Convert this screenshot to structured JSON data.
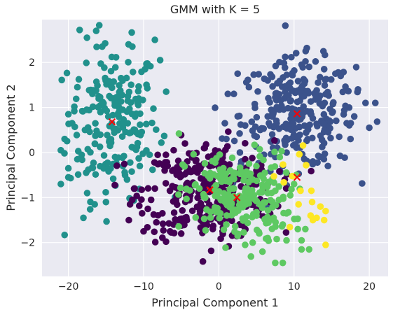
{
  "chart_data": {
    "type": "scatter",
    "title": "GMM with K = 5",
    "xlabel": "Principal Component 1",
    "ylabel": "Principal Component 2",
    "xlim": [
      -23.5,
      22.5
    ],
    "ylim": [
      -2.75,
      2.95
    ],
    "xticks": [
      -20,
      -10,
      0,
      10,
      20
    ],
    "yticks": [
      -2,
      -1,
      0,
      1,
      2
    ],
    "grid": true,
    "background_color": "#eaeaf2",
    "centroid_color": "#ff0000",
    "centroid_marker": "x",
    "clusters": [
      {
        "color": "#21918c",
        "center": [
          -14,
          0.7
        ],
        "spread": [
          3.0,
          0.85
        ],
        "count": 200,
        "points": [
          [
            -18.5,
            2.72
          ],
          [
            -16.3,
            2.7
          ],
          [
            -15.5,
            2.35
          ],
          [
            -12.0,
            2.4
          ],
          [
            -11.5,
            2.35
          ],
          [
            -8.5,
            2.5
          ],
          [
            -7.8,
            2.05
          ],
          [
            -9.8,
            1.85
          ],
          [
            -7.0,
            1.35
          ],
          [
            -18.8,
            1.45
          ],
          [
            -20.0,
            0.85
          ],
          [
            -19.5,
            0.65
          ],
          [
            -20.5,
            0.3
          ],
          [
            -21.0,
            0.05
          ],
          [
            -20.0,
            -0.35
          ],
          [
            -18.8,
            -0.15
          ],
          [
            -20.0,
            -0.55
          ],
          [
            -21.0,
            -0.7
          ],
          [
            -17.5,
            -0.9
          ],
          [
            -16.5,
            -1.15
          ],
          [
            -15.0,
            -1.1
          ],
          [
            -18.0,
            -1.45
          ],
          [
            -20.5,
            -1.83
          ],
          [
            -10.5,
            -0.3
          ],
          [
            -9.2,
            -0.05
          ],
          [
            -11.0,
            0.45
          ],
          [
            -12.2,
            -0.6
          ],
          [
            -10.8,
            1.1
          ],
          [
            -13.0,
            1.65
          ],
          [
            -16.8,
            1.3
          ]
        ]
      },
      {
        "color": "#3b528b",
        "center": [
          10.5,
          0.85
        ],
        "spread": [
          3.8,
          0.6
        ],
        "count": 250,
        "points": [
          [
            2.5,
            1.75
          ],
          [
            4.0,
            1.45
          ],
          [
            2.0,
            1.3
          ],
          [
            1.2,
            1.3
          ],
          [
            0.8,
            0.65
          ],
          [
            1.0,
            0.3
          ],
          [
            3.0,
            -0.2
          ],
          [
            3.5,
            0.6
          ],
          [
            2.8,
            0.0
          ],
          [
            18.5,
            1.4
          ],
          [
            19.5,
            1.1
          ],
          [
            20.8,
            1.1
          ],
          [
            17.0,
            0.65
          ],
          [
            17.5,
            0.3
          ],
          [
            16.0,
            0.35
          ],
          [
            14.5,
            -0.3
          ],
          [
            13.5,
            -0.1
          ],
          [
            12.5,
            -0.2
          ],
          [
            8.5,
            -0.3
          ],
          [
            7.5,
            -0.1
          ],
          [
            6.0,
            -0.05
          ],
          [
            5.5,
            0.5
          ],
          [
            11.0,
            1.95
          ],
          [
            12.0,
            1.9
          ],
          [
            15.5,
            1.75
          ],
          [
            9.5,
            1.55
          ],
          [
            6.5,
            1.6
          ],
          [
            14.0,
            1.85
          ],
          [
            20.0,
            0.55
          ],
          [
            18.0,
            0.8
          ]
        ]
      },
      {
        "color": "#440154",
        "center": [
          -1.3,
          -0.85
        ],
        "spread": [
          4.3,
          0.55
        ],
        "count": 280,
        "points": [
          [
            -6.0,
            0.05
          ],
          [
            -4.5,
            0.2
          ],
          [
            -4.2,
            -0.2
          ],
          [
            -7.2,
            -0.4
          ],
          [
            -6.5,
            -0.85
          ],
          [
            -8.5,
            -0.8
          ],
          [
            -9.0,
            -1.05
          ],
          [
            -11.5,
            -1.05
          ],
          [
            -11.2,
            -0.8
          ],
          [
            -11.8,
            -1.15
          ],
          [
            -10.2,
            -1.35
          ],
          [
            -8.3,
            -1.55
          ],
          [
            -7.5,
            -1.35
          ],
          [
            -10.0,
            -1.75
          ],
          [
            -6.0,
            -1.6
          ],
          [
            -4.5,
            -1.45
          ],
          [
            -5.0,
            -1.8
          ],
          [
            0.5,
            -1.75
          ],
          [
            -0.8,
            -1.7
          ],
          [
            2.0,
            -1.8
          ],
          [
            1.5,
            -1.35
          ],
          [
            -1.5,
            -1.5
          ],
          [
            5.0,
            -0.4
          ],
          [
            6.5,
            -0.7
          ],
          [
            3.5,
            -0.15
          ],
          [
            0.5,
            -0.05
          ],
          [
            -2.0,
            -0.25
          ],
          [
            -6.8,
            -0.3
          ],
          [
            -2.5,
            -1.3
          ],
          [
            3.0,
            -0.5
          ]
        ]
      },
      {
        "color": "#5ec962",
        "center": [
          2.5,
          -1.0
        ],
        "spread": [
          3.5,
          0.5
        ],
        "count": 200,
        "points": [
          [
            -5.3,
            0.42
          ],
          [
            0.8,
            -0.55
          ],
          [
            1.5,
            -0.4
          ],
          [
            3.5,
            -0.45
          ],
          [
            4.5,
            -0.6
          ],
          [
            6.5,
            -0.9
          ],
          [
            7.5,
            -0.85
          ],
          [
            8.0,
            -1.05
          ],
          [
            9.5,
            -0.95
          ],
          [
            9.0,
            -1.35
          ],
          [
            8.5,
            -1.6
          ],
          [
            9.0,
            -1.95
          ],
          [
            10.5,
            -1.7
          ],
          [
            11.0,
            -1.95
          ],
          [
            11.5,
            -1.7
          ],
          [
            11.0,
            -2.15
          ],
          [
            12.0,
            -2.15
          ],
          [
            6.5,
            -1.9
          ],
          [
            5.8,
            -2.2
          ],
          [
            4.5,
            -2.0
          ],
          [
            3.5,
            -2.05
          ],
          [
            2.5,
            -1.85
          ],
          [
            1.0,
            -1.6
          ],
          [
            0.2,
            -1.35
          ],
          [
            7.5,
            -2.45
          ],
          [
            8.5,
            -2.45
          ],
          [
            5.0,
            -1.4
          ],
          [
            3.0,
            -1.2
          ],
          [
            10.0,
            -0.7
          ],
          [
            2.0,
            -0.8
          ]
        ]
      },
      {
        "color": "#fde725",
        "center": [
          10.5,
          -0.55
        ],
        "spread": [
          1.8,
          0.5
        ],
        "count": 10,
        "points": [
          [
            12.3,
            -0.85
          ],
          [
            10.6,
            -1.15
          ],
          [
            12.5,
            -1.5
          ],
          [
            13.5,
            -1.2
          ],
          [
            14.2,
            -1.3
          ],
          [
            13.0,
            -1.45
          ],
          [
            14.0,
            -1.5
          ],
          [
            14.2,
            -2.05
          ],
          [
            12.2,
            -1.4
          ]
        ]
      }
    ],
    "centroids": [
      [
        -14.2,
        0.68
      ],
      [
        10.4,
        0.86
      ],
      [
        -1.2,
        -0.83
      ],
      [
        2.4,
        -1.0
      ],
      [
        10.4,
        -0.55
      ]
    ]
  }
}
